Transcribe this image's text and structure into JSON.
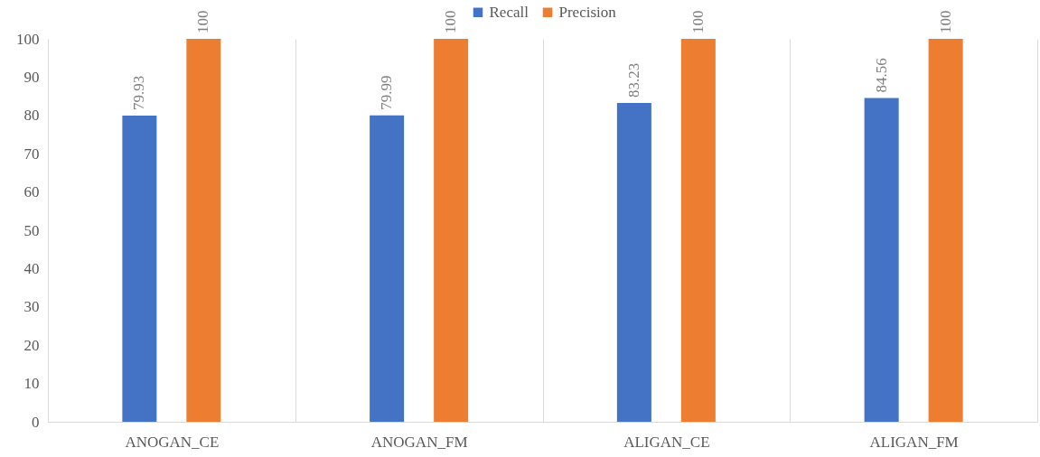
{
  "chart_data": {
    "type": "bar",
    "categories": [
      "ANOGAN_CE",
      "ANOGAN_FM",
      "ALIGAN_CE",
      "ALIGAN_FM"
    ],
    "series": [
      {
        "name": "Recall",
        "color": "#4472c4",
        "values": [
          79.93,
          79.99,
          83.23,
          84.56
        ]
      },
      {
        "name": "Precision",
        "color": "#ed7d31",
        "values": [
          100,
          100,
          100,
          100
        ]
      }
    ],
    "ylim": [
      0,
      100
    ],
    "yticks": [
      0,
      10,
      20,
      30,
      40,
      50,
      60,
      70,
      80,
      90,
      100
    ],
    "grid": "x",
    "legend": "top",
    "data_labels": true
  }
}
